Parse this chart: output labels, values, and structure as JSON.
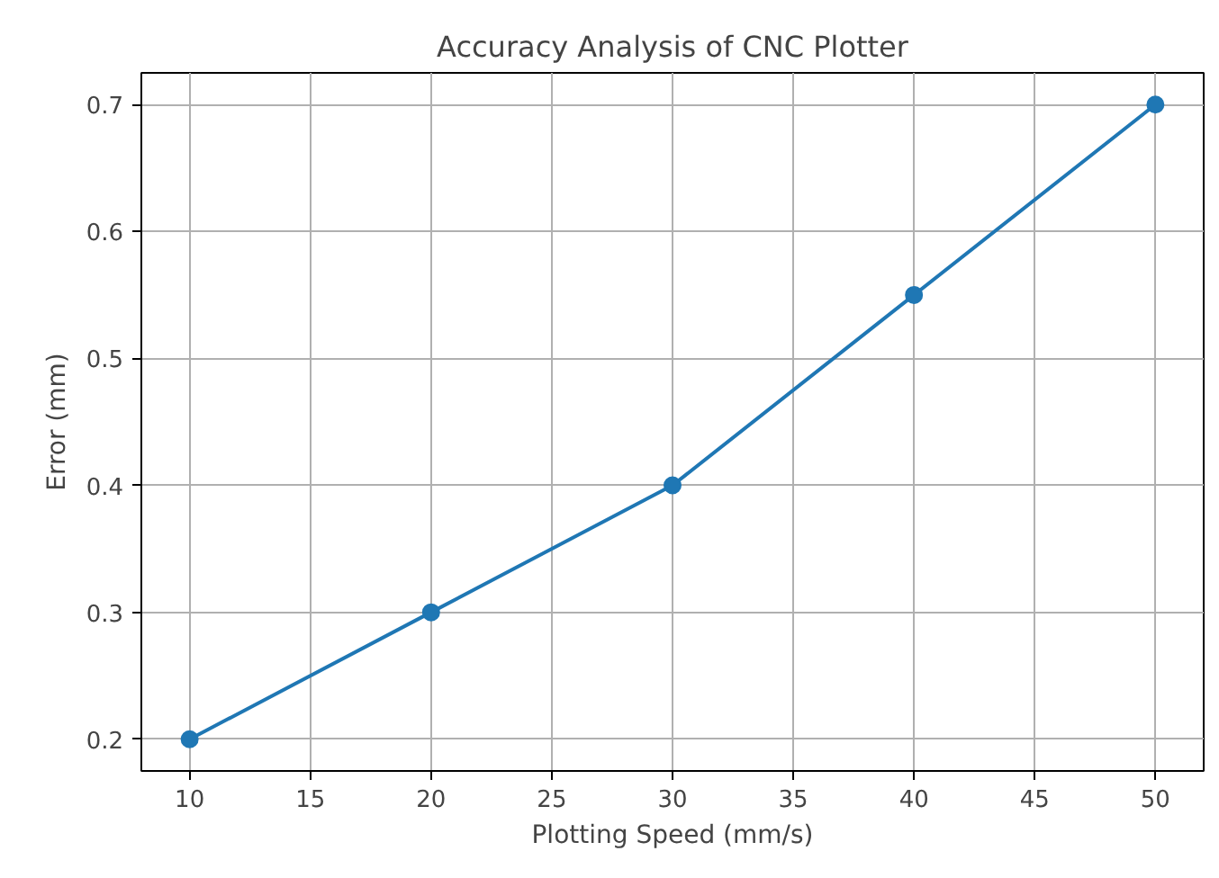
{
  "chart_data": {
    "type": "line",
    "title": "Accuracy Analysis of CNC Plotter",
    "xlabel": "Plotting Speed (mm/s)",
    "ylabel": "Error (mm)",
    "x": [
      10,
      20,
      30,
      40,
      50
    ],
    "series": [
      {
        "color": "#1f77b4",
        "values": [
          0.2,
          0.3,
          0.4,
          0.55,
          0.7
        ]
      }
    ],
    "xlim": [
      8,
      52
    ],
    "ylim": [
      0.175,
      0.725
    ],
    "xticks": [
      10,
      15,
      20,
      25,
      30,
      35,
      40,
      45,
      50
    ],
    "yticks": [
      0.2,
      0.3,
      0.4,
      0.5,
      0.6,
      0.7
    ],
    "grid": true,
    "marker": "circle",
    "line_style": "solid"
  }
}
